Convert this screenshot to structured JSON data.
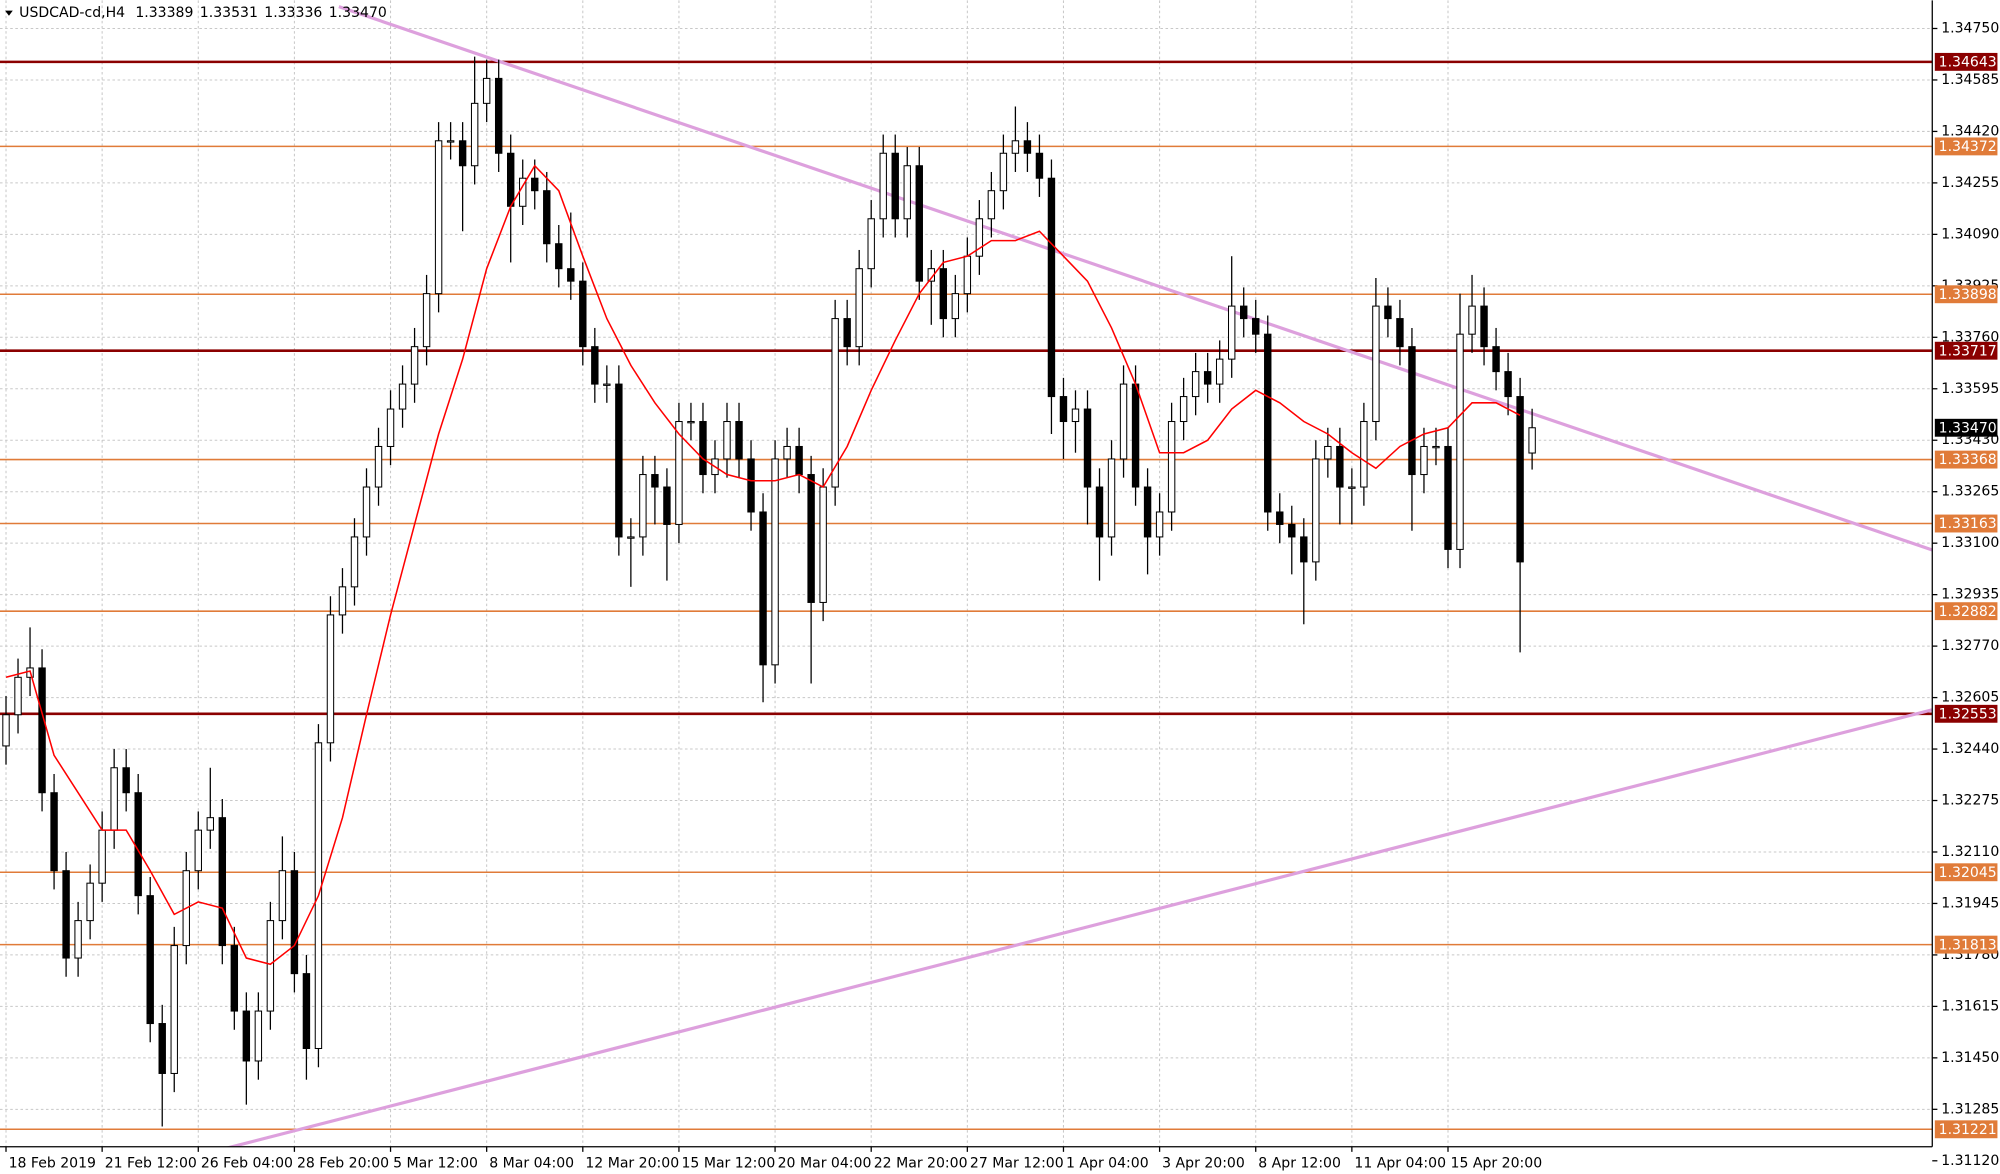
{
  "chart_data": {
    "type": "candlestick",
    "title": "USDCAD-cd,H4",
    "last_bar": {
      "values": [
        1.33389,
        1.33531,
        1.33336,
        1.3347
      ],
      "value_labels": [
        "1.33389",
        "1.33531",
        "1.33336",
        "1.33470"
      ]
    },
    "xlim": [
      -0.5,
      160.3
    ],
    "xticks": [
      {
        "value": 0,
        "label": "18 Feb 2019"
      },
      {
        "value": 8,
        "label": "21 Feb 12:00"
      },
      {
        "value": 16,
        "label": "26 Feb 04:00"
      },
      {
        "value": 24,
        "label": "28 Feb 20:00"
      },
      {
        "value": 32,
        "label": "5 Mar 12:00"
      },
      {
        "value": 40,
        "label": "8 Mar 04:00"
      },
      {
        "value": 48,
        "label": "12 Mar 20:00"
      },
      {
        "value": 56,
        "label": "15 Mar 12:00"
      },
      {
        "value": 64,
        "label": "20 Mar 04:00"
      },
      {
        "value": 72,
        "label": "22 Mar 20:00"
      },
      {
        "value": 80,
        "label": "27 Mar 12:00"
      },
      {
        "value": 88,
        "label": "1 Apr 04:00"
      },
      {
        "value": 96,
        "label": "3 Apr 20:00"
      },
      {
        "value": 104,
        "label": "8 Apr 12:00"
      },
      {
        "value": 112,
        "label": "11 Apr 04:00"
      },
      {
        "value": 120,
        "label": "15 Apr 20:00"
      }
    ],
    "ylim": [
      1.31079,
      1.3484
    ],
    "yticks": [
      {
        "value": 1.3475,
        "label": "1.34750"
      },
      1.34585,
      {
        "value": 1.3442,
        "label": "1.34420"
      },
      1.34255,
      {
        "value": 1.3409,
        "label": "1.34090"
      },
      1.33925,
      {
        "value": 1.3376,
        "label": "1.33760"
      },
      1.33595,
      {
        "value": 1.3343,
        "label": "1.33430"
      },
      1.33265,
      {
        "value": 1.331,
        "label": "1.33100"
      },
      1.32935,
      {
        "value": 1.3277,
        "label": "1.32770"
      },
      1.32605,
      {
        "value": 1.3244,
        "label": "1.32440"
      },
      1.32275,
      {
        "value": 1.3211,
        "label": "1.32110"
      },
      1.31945,
      {
        "value": 1.3178,
        "label": "1.31780"
      },
      1.31615,
      {
        "value": 1.3145,
        "label": "1.31450"
      },
      1.31285,
      {
        "value": 1.3112,
        "label": "1.31120"
      }
    ],
    "grid": true,
    "bull_color": "#ffffff",
    "bear_color": "#000000",
    "open": [
      1.3245,
      1.3255,
      1.3267,
      1.327,
      1.323,
      1.3205,
      1.3177,
      1.3189,
      1.3201,
      1.3218,
      1.3238,
      1.323,
      1.3197,
      1.3156,
      1.314,
      1.3181,
      1.3205,
      1.3218,
      1.3222,
      1.3181,
      1.316,
      1.3144,
      1.316,
      1.3189,
      1.3205,
      1.3172,
      1.3148,
      1.3246,
      1.3287,
      1.3296,
      1.3312,
      1.3328,
      1.3341,
      1.3353,
      1.3361,
      1.3373,
      1.339,
      1.3439,
      1.3439,
      1.3431,
      1.3451,
      1.3459,
      1.3435,
      1.3418,
      1.3427,
      1.3423,
      1.3406,
      1.3398,
      1.3394,
      1.3373,
      1.3361,
      1.3361,
      1.3312,
      1.3312,
      1.3332,
      1.3328,
      1.3316,
      1.3349,
      1.3349,
      1.3332,
      1.3337,
      1.3349,
      1.3337,
      1.332,
      1.3271,
      1.3337,
      1.3341,
      1.3332,
      1.3291,
      1.3328,
      1.3382,
      1.3373,
      1.3398,
      1.3414,
      1.3435,
      1.3414,
      1.3431,
      1.3394,
      1.3398,
      1.3382,
      1.339,
      1.3402,
      1.3414,
      1.3423,
      1.3435,
      1.3439,
      1.3435,
      1.3427,
      1.3357,
      1.3349,
      1.3353,
      1.3328,
      1.3312,
      1.3337,
      1.3361,
      1.3328,
      1.3312,
      1.332,
      1.3349,
      1.3357,
      1.3365,
      1.3361,
      1.3369,
      1.3386,
      1.3382,
      1.3377,
      1.332,
      1.3316,
      1.3312,
      1.3304,
      1.3337,
      1.3341,
      1.3328,
      1.3328,
      1.3349,
      1.3386,
      1.3382,
      1.3373,
      1.3332,
      1.3341,
      1.3341,
      1.3308,
      1.3377,
      1.3386,
      1.3373,
      1.3365,
      1.3357,
      1.33389
    ],
    "high": [
      1.3261,
      1.3273,
      1.3283,
      1.3276,
      1.3236,
      1.3211,
      1.3195,
      1.3207,
      1.3224,
      1.3244,
      1.3244,
      1.3236,
      1.3203,
      1.3162,
      1.3187,
      1.3211,
      1.3224,
      1.3238,
      1.3228,
      1.3187,
      1.3166,
      1.3166,
      1.3195,
      1.3216,
      1.3211,
      1.3178,
      1.3252,
      1.3293,
      1.3302,
      1.3318,
      1.3334,
      1.3347,
      1.3359,
      1.3367,
      1.3379,
      1.3396,
      1.3445,
      1.3445,
      1.3445,
      1.3466,
      1.3465,
      1.3465,
      1.3441,
      1.3433,
      1.3433,
      1.3429,
      1.3412,
      1.3416,
      1.34,
      1.3379,
      1.3367,
      1.3367,
      1.3318,
      1.3338,
      1.3338,
      1.3334,
      1.3355,
      1.3355,
      1.3355,
      1.3343,
      1.3355,
      1.3355,
      1.3343,
      1.3326,
      1.3343,
      1.3347,
      1.3347,
      1.3338,
      1.3334,
      1.3388,
      1.3388,
      1.3404,
      1.342,
      1.3441,
      1.3441,
      1.3437,
      1.3437,
      1.3404,
      1.3404,
      1.3396,
      1.3408,
      1.342,
      1.3429,
      1.3441,
      1.345,
      1.3445,
      1.3441,
      1.3433,
      1.3363,
      1.3359,
      1.3359,
      1.3334,
      1.3343,
      1.3367,
      1.3367,
      1.3334,
      1.3326,
      1.3355,
      1.3363,
      1.3371,
      1.3371,
      1.3375,
      1.3402,
      1.3392,
      1.3388,
      1.3383,
      1.3326,
      1.3322,
      1.3318,
      1.3343,
      1.3347,
      1.3347,
      1.3334,
      1.3355,
      1.3395,
      1.3392,
      1.3388,
      1.3379,
      1.3347,
      1.3347,
      1.3347,
      1.339,
      1.3396,
      1.3392,
      1.3379,
      1.3371,
      1.3363,
      1.33531
    ],
    "low": [
      1.3239,
      1.3249,
      1.3261,
      1.3224,
      1.3199,
      1.3171,
      1.3171,
      1.3183,
      1.3195,
      1.3212,
      1.3224,
      1.3191,
      1.315,
      1.3123,
      1.3134,
      1.3175,
      1.3199,
      1.3212,
      1.3175,
      1.3154,
      1.313,
      1.3138,
      1.3154,
      1.3183,
      1.3166,
      1.3138,
      1.3142,
      1.324,
      1.3281,
      1.329,
      1.3306,
      1.3322,
      1.3335,
      1.3347,
      1.3355,
      1.3367,
      1.3384,
      1.3433,
      1.341,
      1.3425,
      1.3445,
      1.3429,
      1.34,
      1.3412,
      1.3417,
      1.34,
      1.3392,
      1.3388,
      1.3367,
      1.3355,
      1.3355,
      1.3306,
      1.3296,
      1.3306,
      1.3316,
      1.3298,
      1.331,
      1.3343,
      1.3326,
      1.3326,
      1.3331,
      1.3331,
      1.3314,
      1.3259,
      1.3265,
      1.3331,
      1.3326,
      1.3265,
      1.3285,
      1.3322,
      1.3367,
      1.3367,
      1.3392,
      1.3408,
      1.3408,
      1.3408,
      1.3388,
      1.338,
      1.3376,
      1.3376,
      1.3384,
      1.3396,
      1.3408,
      1.3417,
      1.3429,
      1.3429,
      1.3421,
      1.3345,
      1.3337,
      1.3339,
      1.3316,
      1.3298,
      1.3306,
      1.3331,
      1.3322,
      1.33,
      1.3306,
      1.3314,
      1.3343,
      1.3351,
      1.3355,
      1.3355,
      1.3363,
      1.3376,
      1.3371,
      1.3314,
      1.331,
      1.33,
      1.3284,
      1.3298,
      1.3331,
      1.3316,
      1.3316,
      1.3322,
      1.3343,
      1.3376,
      1.3367,
      1.3314,
      1.3326,
      1.3335,
      1.3302,
      1.3302,
      1.3371,
      1.3367,
      1.3359,
      1.3351,
      1.3275,
      1.33336
    ],
    "close": [
      1.3255,
      1.3267,
      1.327,
      1.323,
      1.3205,
      1.3177,
      1.3189,
      1.3201,
      1.3218,
      1.3238,
      1.323,
      1.3197,
      1.3156,
      1.314,
      1.3181,
      1.3205,
      1.3218,
      1.3222,
      1.3181,
      1.316,
      1.3144,
      1.316,
      1.3189,
      1.3205,
      1.3172,
      1.3148,
      1.3246,
      1.3287,
      1.3296,
      1.3312,
      1.3328,
      1.3341,
      1.3353,
      1.3361,
      1.3373,
      1.339,
      1.3439,
      1.3439,
      1.3431,
      1.3451,
      1.3459,
      1.3435,
      1.3418,
      1.3427,
      1.3423,
      1.3406,
      1.3398,
      1.3394,
      1.3373,
      1.3361,
      1.3361,
      1.3312,
      1.3312,
      1.3332,
      1.3328,
      1.3316,
      1.3349,
      1.3349,
      1.3332,
      1.3337,
      1.3349,
      1.3337,
      1.332,
      1.3271,
      1.3337,
      1.3341,
      1.3332,
      1.3291,
      1.3328,
      1.3382,
      1.3373,
      1.3398,
      1.3414,
      1.3435,
      1.3414,
      1.3431,
      1.3394,
      1.3398,
      1.3382,
      1.339,
      1.3402,
      1.3414,
      1.3423,
      1.3435,
      1.3439,
      1.3435,
      1.3427,
      1.3357,
      1.3349,
      1.3353,
      1.3328,
      1.3312,
      1.3337,
      1.3361,
      1.3328,
      1.3312,
      1.332,
      1.3349,
      1.3357,
      1.3365,
      1.3361,
      1.3369,
      1.3386,
      1.3382,
      1.3377,
      1.332,
      1.3316,
      1.3312,
      1.3304,
      1.3337,
      1.3341,
      1.3328,
      1.3328,
      1.3349,
      1.3386,
      1.3382,
      1.3373,
      1.3332,
      1.3341,
      1.3341,
      1.3308,
      1.3377,
      1.3386,
      1.3373,
      1.3365,
      1.3357,
      1.3304,
      1.3347
    ],
    "ma": {
      "color": "#ff0000",
      "x": [
        0,
        2,
        4,
        6,
        8,
        10,
        12,
        14,
        16,
        18,
        20,
        22,
        24,
        26,
        28,
        30,
        32,
        34,
        36,
        38,
        40,
        42,
        44,
        46,
        48,
        50,
        52,
        54,
        56,
        58,
        60,
        62,
        64,
        66,
        68,
        70,
        72,
        74,
        76,
        78,
        80,
        82,
        84,
        86,
        88,
        90,
        92,
        94,
        96,
        98,
        100,
        102,
        104,
        106,
        108,
        110,
        112,
        114,
        116,
        118,
        120,
        122,
        124,
        126
      ],
      "values": [
        1.3267,
        1.3269,
        1.3242,
        1.323,
        1.3218,
        1.3218,
        1.3205,
        1.3191,
        1.3195,
        1.3193,
        1.3177,
        1.3175,
        1.3181,
        1.3197,
        1.3222,
        1.3255,
        1.3287,
        1.3316,
        1.3345,
        1.3369,
        1.3398,
        1.3418,
        1.3431,
        1.3423,
        1.3402,
        1.3382,
        1.3367,
        1.3355,
        1.3345,
        1.3337,
        1.3332,
        1.333,
        1.333,
        1.3332,
        1.3328,
        1.3341,
        1.3359,
        1.3375,
        1.339,
        1.34,
        1.3402,
        1.3407,
        1.3407,
        1.341,
        1.3402,
        1.3394,
        1.3379,
        1.3361,
        1.3339,
        1.3339,
        1.3343,
        1.3353,
        1.3359,
        1.3355,
        1.3349,
        1.3345,
        1.3339,
        1.3334,
        1.3341,
        1.3345,
        1.3347,
        1.3355,
        1.3355,
        1.3351
      ]
    },
    "trendlines": [
      {
        "color": "#dda0dd",
        "points": [
          [
            27.7,
            1.3482
          ],
          [
            160.3,
            1.33078
          ]
        ]
      },
      {
        "color": "#dda0dd",
        "points": [
          [
            17.6,
            1.31153
          ],
          [
            160.3,
            1.32566
          ]
        ]
      }
    ],
    "levels": [
      {
        "value": 1.34643,
        "color": "#8b0000"
      },
      {
        "value": 1.34372,
        "color": "#e07b39"
      },
      {
        "value": 1.33898,
        "color": "#e07b39"
      },
      {
        "value": 1.33717,
        "color": "#8b0000"
      },
      {
        "value": 1.33368,
        "color": "#e07b39"
      },
      {
        "value": 1.33163,
        "color": "#e07b39"
      },
      {
        "value": 1.32882,
        "color": "#e07b39"
      },
      {
        "value": 1.32553,
        "color": "#8b0000"
      },
      {
        "value": 1.32045,
        "color": "#e07b39"
      },
      {
        "value": 1.31813,
        "color": "#e07b39"
      },
      {
        "value": 1.31221,
        "color": "#e07b39"
      }
    ],
    "current_price": {
      "value": 1.3347,
      "label": "1.33470",
      "color": "#000000"
    }
  }
}
